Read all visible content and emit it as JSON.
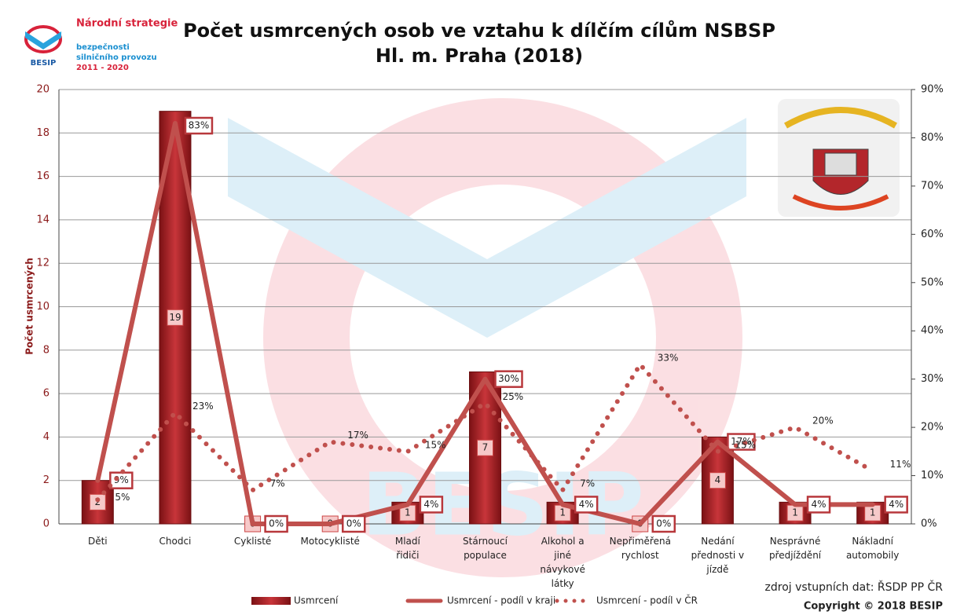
{
  "logo": {
    "lines": [
      "Národní strategie",
      "bezpečnosti",
      "silničního provozu",
      "2011 - 2020"
    ],
    "brand": "BESIP"
  },
  "watermark": "BESIP",
  "source": "zdroj vstupních dat: ŘSDP PP ČR",
  "copyright": "Copyright © 2018 BESIP",
  "chart_data": {
    "type": "bar",
    "title": [
      "Počet usmrcených osob ve vztahu k dílčím cílům NSBSP",
      "Hl. m. Praha (2018)"
    ],
    "y_label": "Počet usmrcených",
    "categories": [
      "Děti",
      "Chodci",
      "Cyklisté",
      "Motocyklisté",
      "Mladí řidiči",
      "Stárnoucí populace",
      "Alkohol a jiné návykové látky",
      "Nepřiměřená rychlost",
      "Nedání přednosti v jízdě",
      "Nesprávné předjíždění",
      "Nákladní automobily"
    ],
    "series": [
      {
        "name": "Usmrcení",
        "type": "bar",
        "color": "#a31f24",
        "values": [
          2,
          19,
          0,
          0,
          1,
          7,
          1,
          0,
          4,
          1,
          1
        ]
      },
      {
        "name": "Usmrcení - podíl v kraji",
        "type": "line",
        "axis": "y2",
        "color": "#c0504d",
        "values": [
          9,
          83,
          0,
          0,
          4,
          30,
          4,
          0,
          17,
          4,
          4
        ],
        "value_labels": [
          "9%",
          "83%",
          "0%",
          "0%",
          "4%",
          "30%",
          "4%",
          "0%",
          "17%",
          "4%",
          "4%"
        ]
      },
      {
        "name": "Usmrcení - podíl v ČR",
        "type": "dotted",
        "axis": "y2",
        "color": "#c0504d",
        "values": [
          5,
          23,
          7,
          17,
          15,
          25,
          7,
          33,
          15,
          20,
          11
        ],
        "value_labels": [
          "5%",
          "23%",
          "7%",
          "17%",
          "15%",
          "25%",
          "7%",
          "33%",
          "15%",
          "20%",
          "11%"
        ]
      }
    ],
    "ylim": [
      0,
      20
    ],
    "yticks": [
      0,
      2,
      4,
      6,
      8,
      10,
      12,
      14,
      16,
      18,
      20
    ],
    "y2lim": [
      0,
      90
    ],
    "y2ticks": [
      {
        "value": 0,
        "label": "0%"
      },
      {
        "value": 10,
        "label": "10%"
      },
      {
        "value": 20,
        "label": "20%"
      },
      {
        "value": 30,
        "label": "30%"
      },
      {
        "value": 40,
        "label": "40%"
      },
      {
        "value": 50,
        "label": "50%"
      },
      {
        "value": 60,
        "label": "60%"
      },
      {
        "value": 70,
        "label": "70%"
      },
      {
        "value": 80,
        "label": "80%"
      },
      {
        "value": 90,
        "label": "90%"
      }
    ],
    "grid": true
  }
}
